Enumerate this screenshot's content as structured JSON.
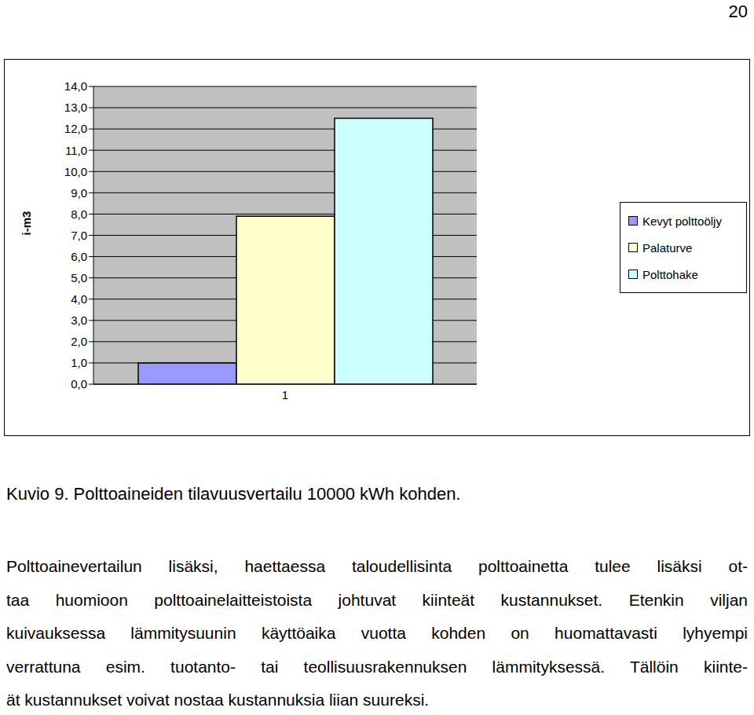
{
  "page_number": "20",
  "chart_data": {
    "type": "bar",
    "y_label": "i-m3",
    "categories": [
      "1"
    ],
    "series": [
      {
        "name": "Kevyt polttoöljy",
        "color": "#9999ff",
        "values": [
          1.0
        ]
      },
      {
        "name": "Palaturve",
        "color": "#ffffcc",
        "values": [
          7.9
        ]
      },
      {
        "name": "Polttohake",
        "color": "#ccffff",
        "values": [
          12.5
        ]
      }
    ],
    "ylim": [
      0,
      14
    ],
    "yticks": [
      {
        "value": 0,
        "label": "0,0"
      },
      {
        "value": 1,
        "label": "1,0"
      },
      {
        "value": 2,
        "label": "2,0"
      },
      {
        "value": 3,
        "label": "3,0"
      },
      {
        "value": 4,
        "label": "4,0"
      },
      {
        "value": 5,
        "label": "5,0"
      },
      {
        "value": 6,
        "label": "6,0"
      },
      {
        "value": 7,
        "label": "7,0"
      },
      {
        "value": 8,
        "label": "8,0"
      },
      {
        "value": 9,
        "label": "9,0"
      },
      {
        "value": 10,
        "label": "10,0"
      },
      {
        "value": 11,
        "label": "11,0"
      },
      {
        "value": 12,
        "label": "12,0"
      },
      {
        "value": 13,
        "label": "13,0"
      },
      {
        "value": 14,
        "label": "14,0"
      }
    ],
    "grid": true,
    "legend": "right"
  },
  "caption": "Kuvio 9. Polttoaineiden tilavuusvertailu 10000 kWh kohden.",
  "paragraph_lines": [
    "Polttoainevertailun lisäksi, haettaessa taloudellisinta polttoainetta tulee lisäksi ot-",
    "taa huomioon polttoainelaitteistoista johtuvat kiinteät kustannukset. Etenkin viljan",
    "kuivauksessa lämmitysuunin käyttöaika vuotta kohden on huomattavasti lyhyempi",
    "verrattuna esim. tuotanto- tai teollisuusrakennuksen lämmityksessä. Tällöin kiinte-",
    "ät kustannukset voivat nostaa kustannuksia liian suureksi."
  ]
}
